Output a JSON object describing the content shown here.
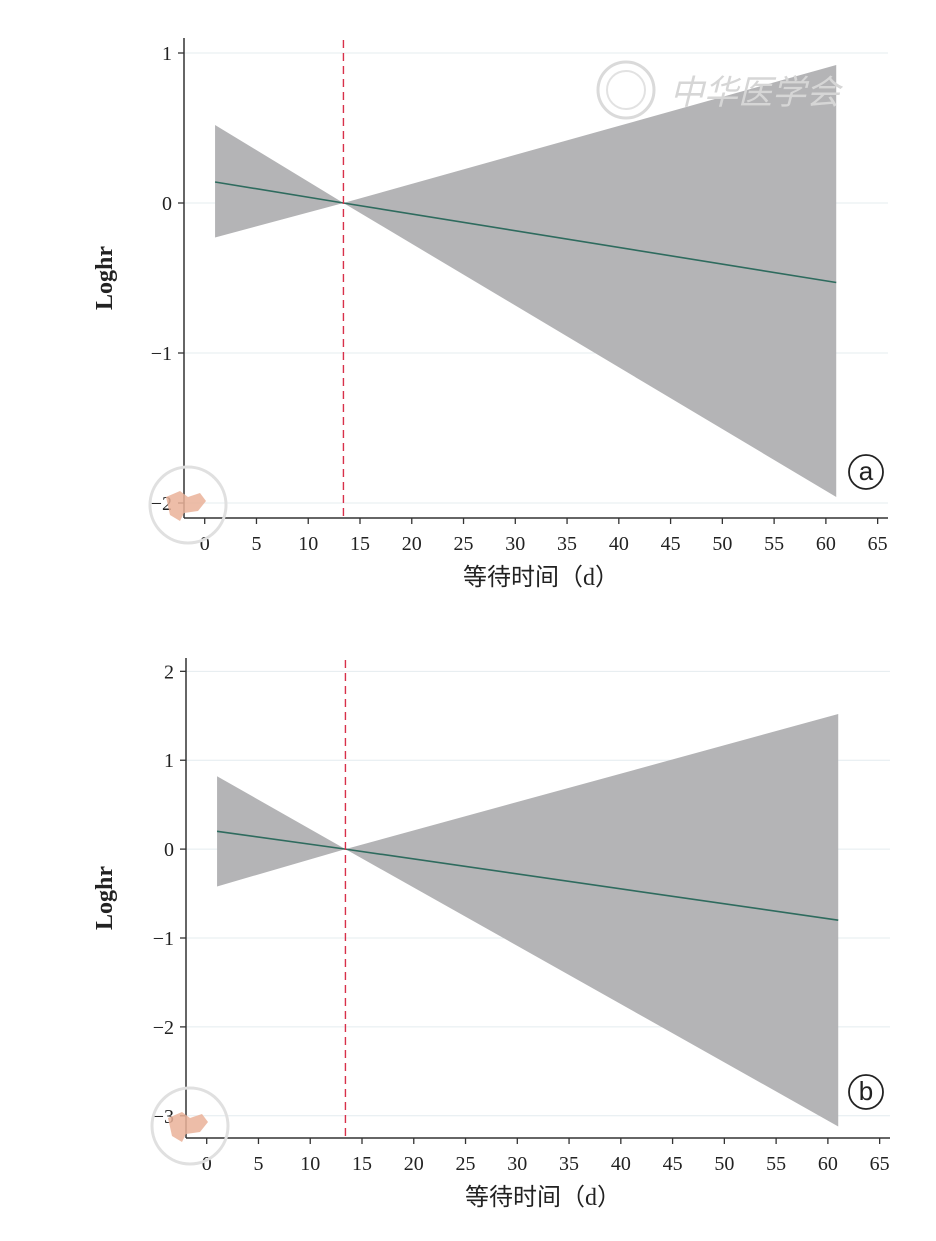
{
  "figure": {
    "watermark_text": "中华医学会",
    "colors": {
      "ci_band": "#b4b4b6",
      "estimate_line": "#2e6b5e",
      "reference_line": "#d8304a",
      "axis": "#333333",
      "gridline": "#e4ecef"
    }
  },
  "panels": [
    {
      "panel_label": "a",
      "xlabel": "等待时间（d）",
      "ylabel": "Loghr"
    },
    {
      "panel_label": "b",
      "xlabel": "等待时间（d）",
      "ylabel": "Loghr"
    }
  ],
  "chart_data": [
    {
      "type": "area",
      "title": "",
      "xlabel": "等待时间（d）",
      "ylabel": "Loghr",
      "xlim": [
        -2,
        66
      ],
      "ylim": [
        -2.1,
        1.1
      ],
      "x_ticks": [
        0,
        5,
        10,
        15,
        20,
        25,
        30,
        35,
        40,
        45,
        50,
        55,
        60,
        65
      ],
      "y_ticks": [
        1,
        0,
        -1,
        -2
      ],
      "y_tick_labels": [
        "1",
        "0",
        "−1",
        "−2"
      ],
      "reference_x": 13.4,
      "grid": true,
      "series": [
        {
          "role": "estimate",
          "x": [
            1,
            13.4,
            61
          ],
          "y": [
            0.14,
            0,
            -0.53
          ]
        },
        {
          "role": "ci_upper",
          "x": [
            1,
            13.4,
            61
          ],
          "y": [
            0.52,
            0,
            0.92
          ]
        },
        {
          "role": "ci_lower",
          "x": [
            1,
            13.4,
            61
          ],
          "y": [
            -0.23,
            0,
            -1.96
          ]
        }
      ]
    },
    {
      "type": "area",
      "title": "",
      "xlabel": "等待时间（d）",
      "ylabel": "Loghr",
      "xlim": [
        -2,
        66
      ],
      "ylim": [
        -3.25,
        2.15
      ],
      "x_ticks": [
        0,
        5,
        10,
        15,
        20,
        25,
        30,
        35,
        40,
        45,
        50,
        55,
        60,
        65
      ],
      "y_ticks": [
        2,
        1,
        0,
        -1,
        -2,
        -3
      ],
      "y_tick_labels": [
        "2",
        "1",
        "0",
        "−1",
        "−2",
        "−3"
      ],
      "reference_x": 13.4,
      "grid": true,
      "series": [
        {
          "role": "estimate",
          "x": [
            1,
            13.4,
            61
          ],
          "y": [
            0.2,
            0,
            -0.8
          ]
        },
        {
          "role": "ci_upper",
          "x": [
            1,
            13.4,
            61
          ],
          "y": [
            0.82,
            0,
            1.52
          ]
        },
        {
          "role": "ci_lower",
          "x": [
            1,
            13.4,
            61
          ],
          "y": [
            -0.42,
            0,
            -3.12
          ]
        }
      ]
    }
  ]
}
